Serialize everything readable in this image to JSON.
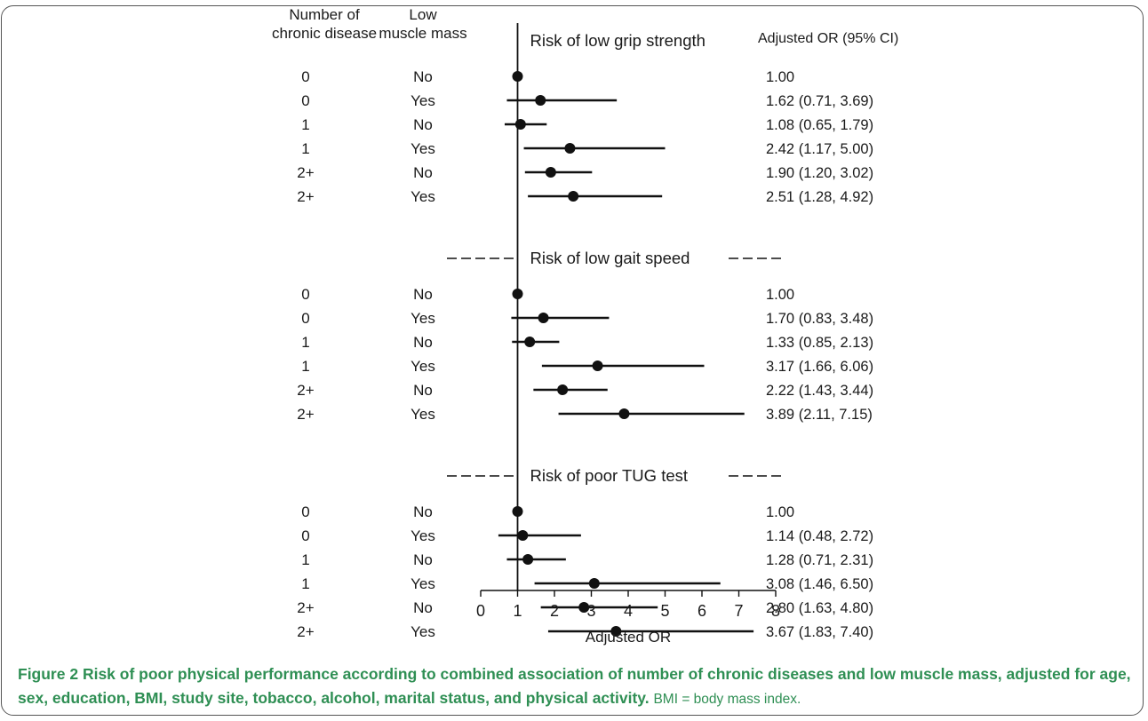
{
  "chart_data": {
    "type": "forest",
    "column_headers": {
      "disease": "Number of\nchronic disease",
      "muscle": "Low\nmuscle mass",
      "or_ci": "Adjusted OR (95% CI)"
    },
    "xlabel": "Adjusted OR",
    "xlim": [
      0,
      8
    ],
    "xticks": [
      0,
      1,
      2,
      3,
      4,
      5,
      6,
      7,
      8
    ],
    "reference_line": 1,
    "panels": [
      {
        "title": "Risk of low grip strength",
        "rows": [
          {
            "disease": "0",
            "muscle": "No",
            "or": 1.0,
            "lo": null,
            "hi": null,
            "label": "1.00"
          },
          {
            "disease": "0",
            "muscle": "Yes",
            "or": 1.62,
            "lo": 0.71,
            "hi": 3.69,
            "label": "1.62 (0.71, 3.69)"
          },
          {
            "disease": "1",
            "muscle": "No",
            "or": 1.08,
            "lo": 0.65,
            "hi": 1.79,
            "label": "1.08 (0.65, 1.79)"
          },
          {
            "disease": "1",
            "muscle": "Yes",
            "or": 2.42,
            "lo": 1.17,
            "hi": 5.0,
            "label": "2.42 (1.17, 5.00)"
          },
          {
            "disease": "2+",
            "muscle": "No",
            "or": 1.9,
            "lo": 1.2,
            "hi": 3.02,
            "label": "1.90 (1.20, 3.02)"
          },
          {
            "disease": "2+",
            "muscle": "Yes",
            "or": 2.51,
            "lo": 1.28,
            "hi": 4.92,
            "label": "2.51 (1.28, 4.92)"
          }
        ]
      },
      {
        "title": "Risk of low gait speed",
        "rows": [
          {
            "disease": "0",
            "muscle": "No",
            "or": 1.0,
            "lo": null,
            "hi": null,
            "label": "1.00"
          },
          {
            "disease": "0",
            "muscle": "Yes",
            "or": 1.7,
            "lo": 0.83,
            "hi": 3.48,
            "label": "1.70 (0.83, 3.48)"
          },
          {
            "disease": "1",
            "muscle": "No",
            "or": 1.33,
            "lo": 0.85,
            "hi": 2.13,
            "label": "1.33 (0.85, 2.13)"
          },
          {
            "disease": "1",
            "muscle": "Yes",
            "or": 3.17,
            "lo": 1.66,
            "hi": 6.06,
            "label": "3.17 (1.66, 6.06)"
          },
          {
            "disease": "2+",
            "muscle": "No",
            "or": 2.22,
            "lo": 1.43,
            "hi": 3.44,
            "label": "2.22 (1.43, 3.44)"
          },
          {
            "disease": "2+",
            "muscle": "Yes",
            "or": 3.89,
            "lo": 2.11,
            "hi": 7.15,
            "label": "3.89 (2.11, 7.15)"
          }
        ]
      },
      {
        "title": "Risk of poor TUG test",
        "rows": [
          {
            "disease": "0",
            "muscle": "No",
            "or": 1.0,
            "lo": null,
            "hi": null,
            "label": "1.00"
          },
          {
            "disease": "0",
            "muscle": "Yes",
            "or": 1.14,
            "lo": 0.48,
            "hi": 2.72,
            "label": "1.14 (0.48, 2.72)"
          },
          {
            "disease": "1",
            "muscle": "No",
            "or": 1.28,
            "lo": 0.71,
            "hi": 2.31,
            "label": "1.28 (0.71, 2.31)"
          },
          {
            "disease": "1",
            "muscle": "Yes",
            "or": 3.08,
            "lo": 1.46,
            "hi": 6.5,
            "label": "3.08 (1.46, 6.50)"
          },
          {
            "disease": "2+",
            "muscle": "No",
            "or": 2.8,
            "lo": 1.63,
            "hi": 4.8,
            "label": "2.80 (1.63, 4.80)"
          },
          {
            "disease": "2+",
            "muscle": "Yes",
            "or": 3.67,
            "lo": 1.83,
            "hi": 7.4,
            "label": "3.67 (1.83, 7.40)"
          }
        ]
      }
    ]
  },
  "caption": {
    "figure_label": "Figure 2",
    "title": "Risk of poor physical performance according to combined association of number of chronic diseases and low muscle mass, adjusted for age, sex, education, BMI, study site, tobacco, alcohol, marital status, and physical activity.",
    "note": "BMI = body mass index."
  }
}
